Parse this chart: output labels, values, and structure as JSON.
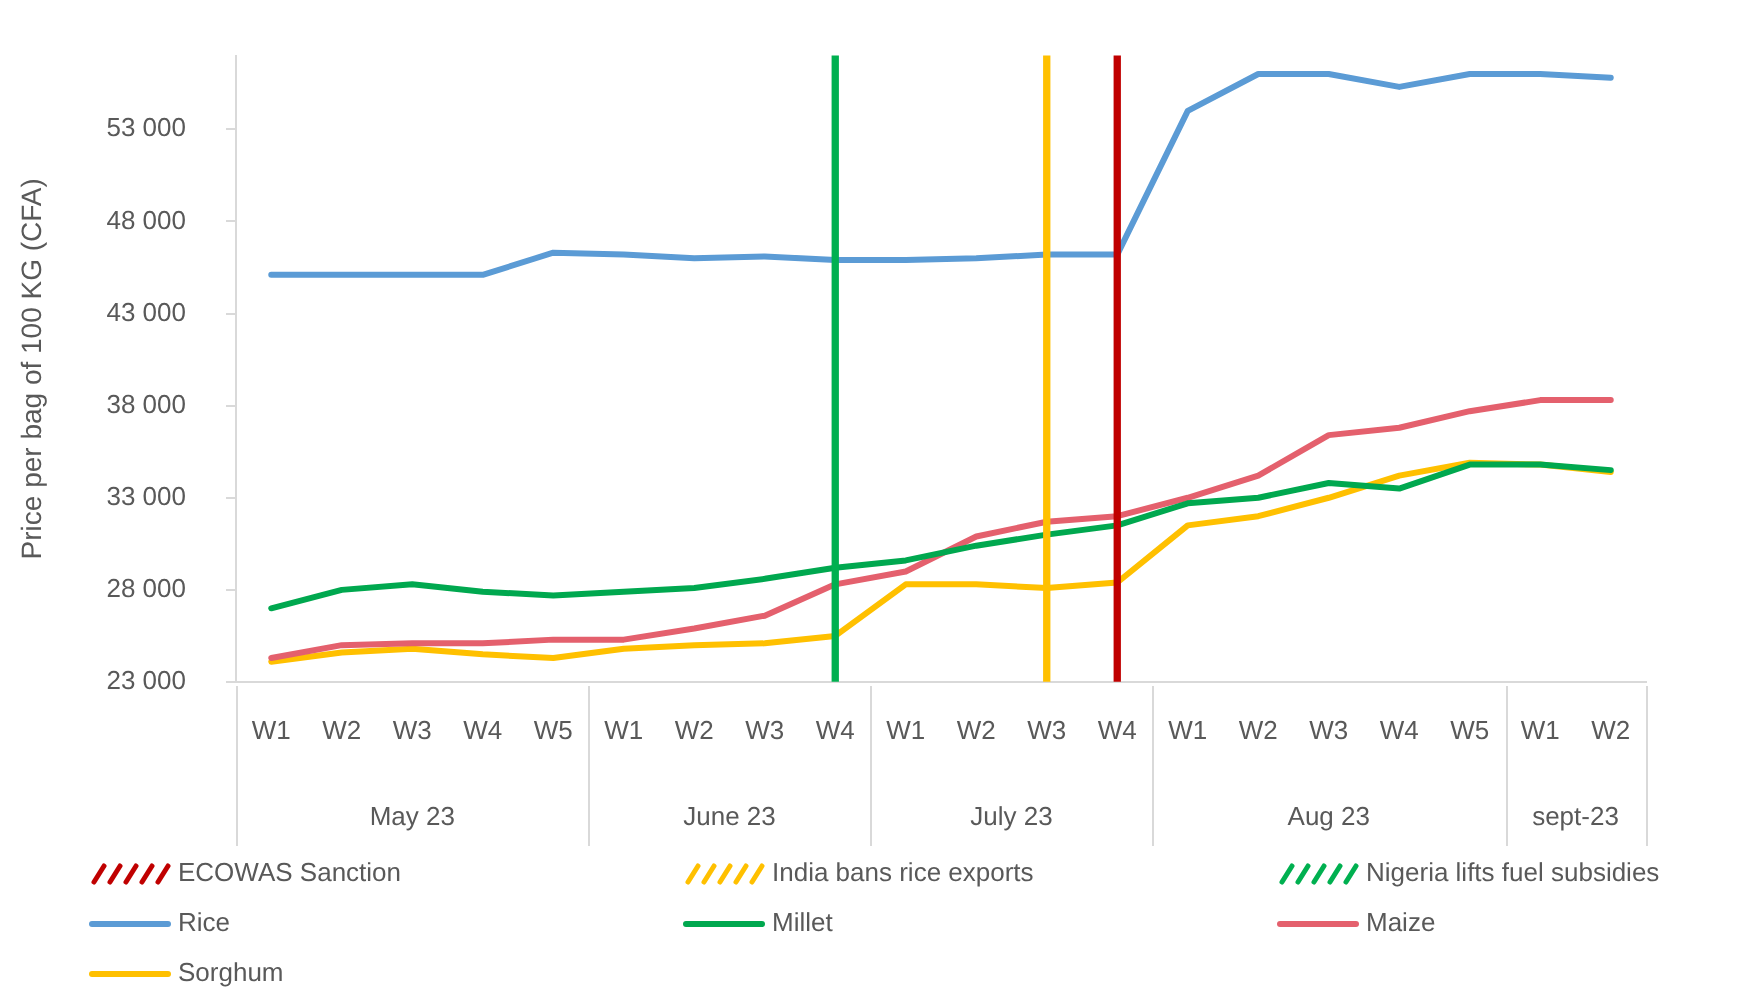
{
  "chart_data": {
    "type": "line",
    "ylabel": "Price per bag of 100 KG (CFA)",
    "categories": [
      "W1",
      "W2",
      "W3",
      "W4",
      "W5",
      "W1",
      "W2",
      "W3",
      "W4",
      "W1",
      "W2",
      "W3",
      "W4",
      "W1",
      "W2",
      "W3",
      "W4",
      "W5",
      "W1",
      "W2"
    ],
    "annotations": [
      "May 23",
      "June 23",
      "July 23",
      "Aug 23",
      "sept-23"
    ],
    "series": [
      {
        "name": "ECOWAS Sanction",
        "type": "bar",
        "color": "#c00000",
        "values": [
          null,
          null,
          null,
          null,
          null,
          null,
          null,
          null,
          null,
          null,
          null,
          null,
          57000,
          null,
          null,
          null,
          null,
          null,
          null,
          null
        ]
      },
      {
        "name": "India bans rice exports",
        "type": "bar",
        "color": "#ffc000",
        "values": [
          null,
          null,
          null,
          null,
          null,
          null,
          null,
          null,
          null,
          null,
          null,
          57000,
          null,
          null,
          null,
          null,
          null,
          null,
          null,
          null
        ]
      },
      {
        "name": "Nigeria lifts fuel subsidies",
        "type": "bar",
        "color": "#00b050",
        "values": [
          null,
          null,
          null,
          null,
          null,
          null,
          null,
          null,
          57000,
          null,
          null,
          null,
          null,
          null,
          null,
          null,
          null,
          null,
          null,
          null
        ]
      },
      {
        "name": "Rice",
        "type": "line",
        "color": "#5b9bd5",
        "values": [
          45100,
          45100,
          45100,
          45100,
          46300,
          46200,
          46000,
          46100,
          45900,
          45900,
          46000,
          46200,
          46200,
          54000,
          56000,
          56000,
          55300,
          56000,
          56000,
          55800
        ]
      },
      {
        "name": "Millet",
        "type": "line",
        "color": "#00a84f",
        "values": [
          27000,
          28000,
          28300,
          27900,
          27700,
          27900,
          28100,
          28600,
          29200,
          29600,
          30400,
          31000,
          31500,
          32700,
          33000,
          33800,
          33500,
          34800,
          34800,
          34500
        ]
      },
      {
        "name": "Maize",
        "type": "line",
        "color": "#e4606d",
        "values": [
          24300,
          25000,
          25100,
          25100,
          25300,
          25300,
          25900,
          26600,
          28300,
          29000,
          30900,
          31700,
          32000,
          33000,
          34200,
          36400,
          36800,
          37700,
          38300,
          38300
        ]
      },
      {
        "name": "Sorghum",
        "type": "line",
        "color": "#ffc000",
        "values": [
          24100,
          24600,
          24800,
          24500,
          24300,
          24800,
          25000,
          25100,
          25500,
          28300,
          28300,
          28100,
          28400,
          31500,
          32000,
          33000,
          34200,
          34900,
          34800,
          34400
        ]
      }
    ],
    "ylim": [
      23000,
      57000
    ],
    "yticks": [
      {
        "value": 23000,
        "label": "23 000"
      },
      {
        "value": 28000,
        "label": "28 000"
      },
      {
        "value": 33000,
        "label": "33 000"
      },
      {
        "value": 38000,
        "label": "38 000"
      },
      {
        "value": 43000,
        "label": "43 000"
      },
      {
        "value": 48000,
        "label": "48 000"
      },
      {
        "value": 53000,
        "label": "53 000"
      }
    ],
    "grid": false,
    "legend": "bottom",
    "marker": "none"
  }
}
